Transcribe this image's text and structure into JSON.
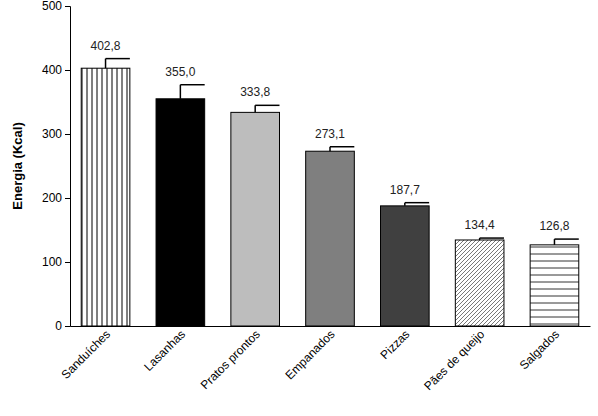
{
  "chart_data": {
    "type": "bar",
    "y_label": "Energia (Kcal)",
    "categories": [
      "Sanduíches",
      "Lasanhas",
      "Pratos prontos",
      "Empanados",
      "Pizzas",
      "Pães de queijo",
      "Salgados"
    ],
    "values": [
      402.8,
      355.0,
      333.8,
      273.1,
      187.7,
      134.4,
      126.8
    ],
    "value_labels": [
      "402,8",
      "355,0",
      "333,8",
      "273,1",
      "187,7",
      "134,4",
      "126,8"
    ],
    "errors": [
      15,
      22,
      11,
      7,
      5,
      3,
      9
    ],
    "colors": [
      "#ffffff",
      "#000000",
      "#bdbdbd",
      "#7f7f7f",
      "#404040",
      "#ffffff",
      "#ffffff"
    ],
    "ylim": [
      0,
      500
    ],
    "yticks": [
      0,
      100,
      200,
      300,
      400,
      500
    ],
    "grid": false,
    "data_labels": true
  }
}
